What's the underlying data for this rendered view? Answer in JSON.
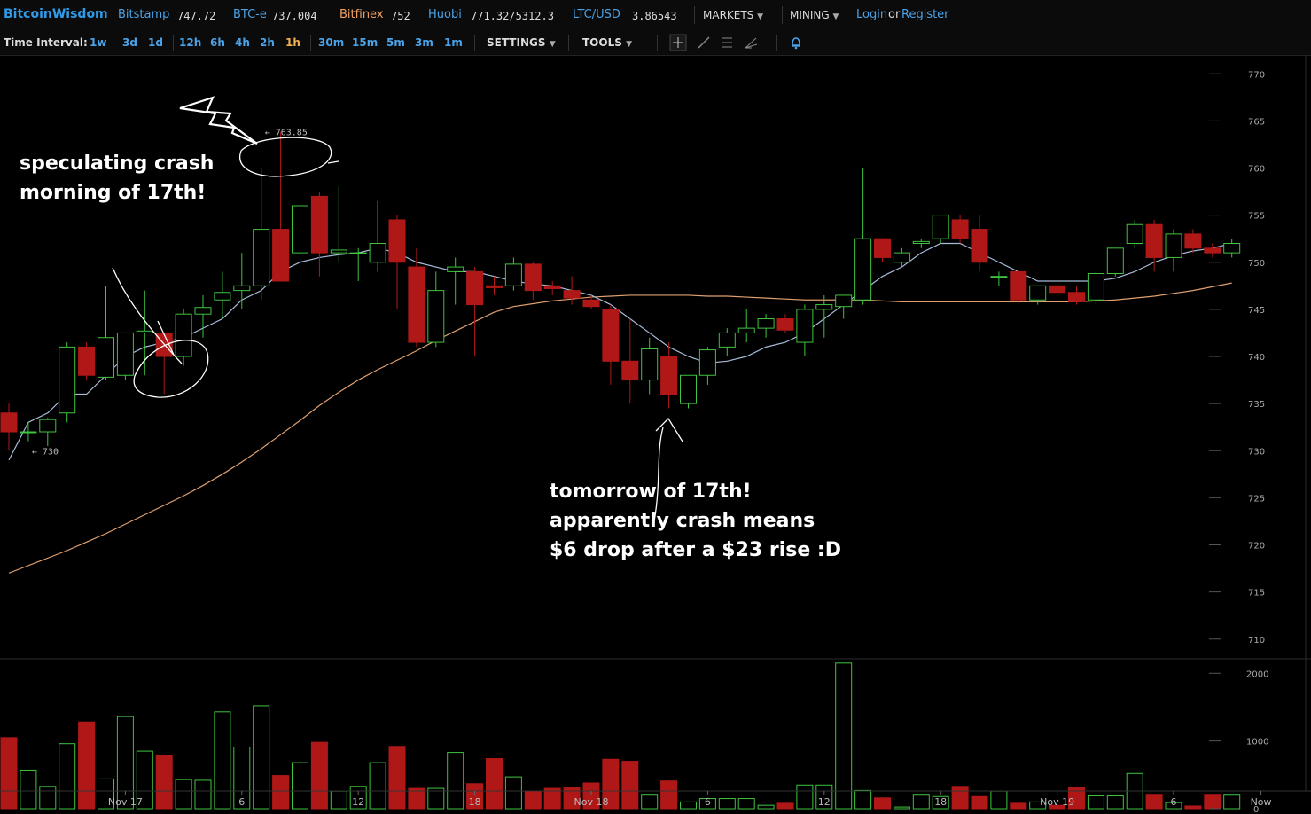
{
  "header": {
    "brand": "BitcoinWisdom",
    "markets": [
      {
        "name": "Bitstamp",
        "price": "747.72",
        "color": "#4aa3e8"
      },
      {
        "name": "BTC-e",
        "price": "737.004",
        "color": "#4aa3e8"
      },
      {
        "name": "Bitfinex",
        "price": "752",
        "color": "#f0a060"
      },
      {
        "name": "Huobi",
        "price": "771.32/5312.3",
        "color": "#4aa3e8"
      },
      {
        "name": "LTC/USD",
        "price": "3.86543",
        "color": "#4aa3e8"
      }
    ],
    "menus": {
      "markets": "MARKETS",
      "mining": "MINING"
    },
    "login": "Login",
    "or": "or",
    "register": "Register"
  },
  "toolbar": {
    "time_interval_label": "Time Interval:",
    "intervals": [
      "1w",
      "3d",
      "1d",
      "12h",
      "6h",
      "4h",
      "2h",
      "1h",
      "30m",
      "15m",
      "5m",
      "3m",
      "1m"
    ],
    "active_interval": "1h",
    "settings": "SETTINGS",
    "tools": "TOOLS",
    "tool_icons": [
      "crosshair-icon",
      "line-icon",
      "horizontal-lines-icon",
      "draw-icon",
      "bell-icon"
    ]
  },
  "annotations": {
    "left": [
      "speculating crash",
      "morning of 17th!"
    ],
    "bottom": [
      "tomorrow of 17th!",
      "apparently crash means",
      "$6 drop after a $23 rise :D"
    ]
  },
  "colors": {
    "up": "#3ec43e",
    "down": "#b01818",
    "ma_short": "#a8bcd8",
    "ma_long": "#e0a070"
  },
  "chart_data": [
    {
      "type": "candlestick",
      "y_ticks": [
        770,
        765,
        760,
        755,
        750,
        745,
        740,
        735,
        730,
        725,
        720,
        715,
        710
      ],
      "ylim": [
        708,
        772
      ],
      "x_ticks": [
        {
          "label": "Nov 17",
          "index": 6
        },
        {
          "label": "6",
          "index": 12
        },
        {
          "label": "12",
          "index": 18
        },
        {
          "label": "18",
          "index": 24
        },
        {
          "label": "Nov 18",
          "index": 30
        },
        {
          "label": "6",
          "index": 36
        },
        {
          "label": "12",
          "index": 42
        },
        {
          "label": "18",
          "index": 48
        },
        {
          "label": "Nov 19",
          "index": 54
        },
        {
          "label": "6",
          "index": 60
        },
        {
          "label": "Now",
          "index": 64.5
        }
      ],
      "price_labels": [
        {
          "text": "763.85",
          "index": 13,
          "value": 763.85
        },
        {
          "text": "730",
          "index": 1,
          "value": 730
        }
      ],
      "candles": [
        {
          "o": 734,
          "h": 735,
          "l": 730,
          "c": 732
        },
        {
          "o": 732,
          "h": 733,
          "l": 731,
          "c": 732
        },
        {
          "o": 732,
          "h": 733.5,
          "l": 730.5,
          "c": 733.3
        },
        {
          "o": 734,
          "h": 741.5,
          "l": 733,
          "c": 741
        },
        {
          "o": 741,
          "h": 741.5,
          "l": 737.5,
          "c": 738
        },
        {
          "o": 737.8,
          "h": 747.5,
          "l": 737.5,
          "c": 742
        },
        {
          "o": 738,
          "h": 742.5,
          "l": 737.5,
          "c": 742.5
        },
        {
          "o": 742.5,
          "h": 747,
          "l": 738,
          "c": 742.7
        },
        {
          "o": 742.5,
          "h": 742.5,
          "l": 736,
          "c": 740
        },
        {
          "o": 740,
          "h": 745,
          "l": 739,
          "c": 744.5
        },
        {
          "o": 744.5,
          "h": 746.5,
          "l": 742,
          "c": 745.2
        },
        {
          "o": 746,
          "h": 749,
          "l": 744,
          "c": 746.8
        },
        {
          "o": 747,
          "h": 751,
          "l": 745,
          "c": 747.5
        },
        {
          "o": 747.5,
          "h": 760,
          "l": 746,
          "c": 753.5
        },
        {
          "o": 753.5,
          "h": 763.85,
          "l": 748,
          "c": 748
        },
        {
          "o": 751,
          "h": 758,
          "l": 749,
          "c": 756
        },
        {
          "o": 757,
          "h": 757.5,
          "l": 748.5,
          "c": 751
        },
        {
          "o": 751,
          "h": 758,
          "l": 750,
          "c": 751.3
        },
        {
          "o": 751,
          "h": 751.5,
          "l": 748,
          "c": 751
        },
        {
          "o": 750,
          "h": 756.5,
          "l": 749,
          "c": 752
        },
        {
          "o": 754.5,
          "h": 755,
          "l": 745,
          "c": 750
        },
        {
          "o": 749.5,
          "h": 751.5,
          "l": 741,
          "c": 741.5
        },
        {
          "o": 741.5,
          "h": 749,
          "l": 741,
          "c": 747
        },
        {
          "o": 749,
          "h": 750.5,
          "l": 745.5,
          "c": 749.5
        },
        {
          "o": 749,
          "h": 749.5,
          "l": 740,
          "c": 745.5
        },
        {
          "o": 747.5,
          "h": 748.5,
          "l": 746.5,
          "c": 747.3
        },
        {
          "o": 747.5,
          "h": 750.5,
          "l": 747,
          "c": 749.8
        },
        {
          "o": 749.8,
          "h": 750,
          "l": 746,
          "c": 747
        },
        {
          "o": 747.5,
          "h": 748,
          "l": 746.5,
          "c": 747.2
        },
        {
          "o": 747,
          "h": 748.5,
          "l": 745.5,
          "c": 746.2
        },
        {
          "o": 746,
          "h": 746.5,
          "l": 745,
          "c": 745.3
        },
        {
          "o": 745,
          "h": 745.5,
          "l": 737,
          "c": 739.5
        },
        {
          "o": 739.5,
          "h": 744,
          "l": 735,
          "c": 737.5
        },
        {
          "o": 737.5,
          "h": 742,
          "l": 736,
          "c": 740.8
        },
        {
          "o": 740,
          "h": 741.5,
          "l": 734.5,
          "c": 736
        },
        {
          "o": 735,
          "h": 738,
          "l": 734.5,
          "c": 738
        },
        {
          "o": 738,
          "h": 741,
          "l": 737,
          "c": 740.7
        },
        {
          "o": 741,
          "h": 743,
          "l": 740,
          "c": 742.5
        },
        {
          "o": 742.5,
          "h": 745,
          "l": 741.5,
          "c": 743
        },
        {
          "o": 743,
          "h": 744.5,
          "l": 742,
          "c": 744
        },
        {
          "o": 744,
          "h": 744.5,
          "l": 742.5,
          "c": 742.8
        },
        {
          "o": 741.5,
          "h": 745.5,
          "l": 740,
          "c": 745
        },
        {
          "o": 745,
          "h": 746.5,
          "l": 742,
          "c": 745.5
        },
        {
          "o": 745.3,
          "h": 746.5,
          "l": 744,
          "c": 746.5
        },
        {
          "o": 746,
          "h": 760,
          "l": 745.5,
          "c": 752.5
        },
        {
          "o": 752.5,
          "h": 752.5,
          "l": 750,
          "c": 750.5
        },
        {
          "o": 750,
          "h": 751.5,
          "l": 749.5,
          "c": 751
        },
        {
          "o": 752,
          "h": 752.5,
          "l": 751.5,
          "c": 752.2
        },
        {
          "o": 752.5,
          "h": 755,
          "l": 752,
          "c": 755
        },
        {
          "o": 754.5,
          "h": 755,
          "l": 752,
          "c": 752.5
        },
        {
          "o": 753.5,
          "h": 755,
          "l": 749,
          "c": 750
        },
        {
          "o": 748.5,
          "h": 749,
          "l": 747.5,
          "c": 748.5
        },
        {
          "o": 749,
          "h": 749,
          "l": 745.5,
          "c": 746
        },
        {
          "o": 746,
          "h": 747.5,
          "l": 745.5,
          "c": 747.5
        },
        {
          "o": 747.5,
          "h": 748,
          "l": 746.5,
          "c": 746.8
        },
        {
          "o": 746.8,
          "h": 747.5,
          "l": 745.5,
          "c": 745.8
        },
        {
          "o": 746,
          "h": 749,
          "l": 745.5,
          "c": 748.8
        },
        {
          "o": 748.8,
          "h": 751.5,
          "l": 748.5,
          "c": 751.5
        },
        {
          "o": 752,
          "h": 754.5,
          "l": 751.5,
          "c": 754
        },
        {
          "o": 754,
          "h": 754.5,
          "l": 749,
          "c": 750.5
        },
        {
          "o": 750.5,
          "h": 753.5,
          "l": 749,
          "c": 753
        },
        {
          "o": 753,
          "h": 753.5,
          "l": 751,
          "c": 751.5
        },
        {
          "o": 751.5,
          "h": 752,
          "l": 750.5,
          "c": 751
        },
        {
          "o": 751,
          "h": 752.5,
          "l": 750.5,
          "c": 752
        }
      ],
      "ma_short": [
        729,
        733,
        734,
        736,
        736,
        738,
        740,
        741,
        741.5,
        742,
        743,
        744,
        746,
        747,
        749,
        750,
        750.5,
        750.8,
        751,
        751.5,
        751,
        750,
        749.5,
        749,
        749,
        748.5,
        748,
        747.7,
        747.5,
        747,
        746.5,
        745.5,
        744,
        742.5,
        741,
        740,
        739.3,
        739.5,
        740,
        741,
        741.5,
        742.5,
        744,
        745.5,
        747,
        748.5,
        749.5,
        751,
        752,
        752,
        751,
        750,
        749,
        748,
        748,
        748,
        748,
        748.3,
        749,
        750,
        750.7,
        751.2,
        751.5,
        752
      ],
      "ma_long": [
        717,
        717.8,
        718.6,
        719.4,
        720.3,
        721.2,
        722.2,
        723.2,
        724.2,
        725.2,
        726.3,
        727.5,
        728.8,
        730.2,
        731.7,
        733.2,
        734.8,
        736.2,
        737.5,
        738.6,
        739.6,
        740.6,
        741.7,
        742.7,
        743.7,
        744.7,
        745.3,
        745.6,
        745.9,
        746.1,
        746.3,
        746.4,
        746.5,
        746.5,
        746.5,
        746.5,
        746.4,
        746.4,
        746.3,
        746.2,
        746.1,
        746.0,
        746.0,
        746.0,
        746.0,
        745.9,
        745.8,
        745.8,
        745.8,
        745.8,
        745.8,
        745.8,
        745.8,
        745.8,
        745.8,
        745.8,
        745.9,
        746.0,
        746.2,
        746.4,
        746.7,
        747.0,
        747.4,
        747.8
      ]
    },
    {
      "type": "bar",
      "y_ticks": [
        2000,
        1000,
        0
      ],
      "ylim": [
        0,
        2200
      ],
      "volumes": [
        1050,
        570,
        330,
        960,
        1280,
        440,
        1360,
        850,
        780,
        430,
        420,
        1430,
        910,
        1520,
        490,
        680,
        980,
        260,
        330,
        680,
        920,
        300,
        300,
        830,
        370,
        740,
        470,
        260,
        300,
        320,
        380,
        730,
        700,
        200,
        410,
        100,
        150,
        150,
        150,
        50,
        80,
        350,
        350,
        2150,
        270,
        160,
        25,
        200,
        180,
        330,
        180,
        260,
        80,
        100,
        50,
        320,
        190,
        190,
        520,
        200,
        90,
        40,
        200,
        200
      ]
    }
  ]
}
